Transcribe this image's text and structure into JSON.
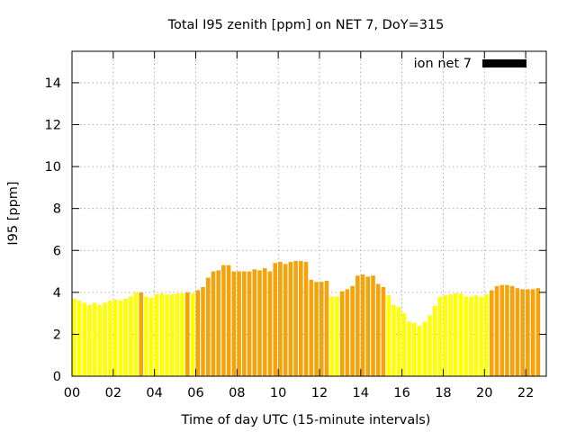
{
  "chart_data": {
    "type": "bar",
    "title": "Total I95 zenith [ppm] on NET 7, DoY=315",
    "xlabel": "Time of day UTC (15-minute intervals)",
    "ylabel": "I95 [ppm]",
    "xlim": [
      0,
      23
    ],
    "ylim": [
      0,
      15.5
    ],
    "x_ticks": [
      0,
      2,
      4,
      6,
      8,
      10,
      12,
      14,
      16,
      18,
      20,
      22
    ],
    "x_tick_labels": [
      "00",
      "02",
      "04",
      "06",
      "08",
      "10",
      "12",
      "14",
      "16",
      "18",
      "20",
      "22"
    ],
    "y_ticks": [
      0,
      2,
      4,
      6,
      8,
      10,
      12,
      14
    ],
    "y_tick_labels": [
      "0",
      "2",
      "4",
      "6",
      "8",
      "10",
      "12",
      "14"
    ],
    "grid": true,
    "legend": {
      "label": "ion net 7",
      "color": "#000000",
      "position": "top-right"
    },
    "interval_hours": 0.25,
    "x": [
      0.0,
      0.25,
      0.5,
      0.75,
      1.0,
      1.25,
      1.5,
      1.75,
      2.0,
      2.25,
      2.5,
      2.75,
      3.0,
      3.25,
      3.5,
      3.75,
      4.0,
      4.25,
      4.5,
      4.75,
      5.0,
      5.25,
      5.5,
      5.75,
      6.0,
      6.25,
      6.5,
      6.75,
      7.0,
      7.25,
      7.5,
      7.75,
      8.0,
      8.25,
      8.5,
      8.75,
      9.0,
      9.25,
      9.5,
      9.75,
      10.0,
      10.25,
      10.5,
      10.75,
      11.0,
      11.25,
      11.5,
      11.75,
      12.0,
      12.25,
      12.5,
      12.75,
      13.0,
      13.25,
      13.5,
      13.75,
      14.0,
      14.25,
      14.5,
      14.75,
      15.0,
      15.25,
      15.5,
      15.75,
      16.0,
      16.25,
      16.5,
      16.75,
      17.0,
      17.25,
      17.5,
      17.75,
      18.0,
      18.25,
      18.5,
      18.75,
      19.0,
      19.25,
      19.5,
      19.75,
      20.0,
      20.25,
      20.5,
      20.75,
      21.0,
      21.25,
      21.5,
      21.75,
      22.0,
      22.25,
      22.5
    ],
    "values": [
      3.7,
      3.6,
      3.5,
      3.4,
      3.5,
      3.4,
      3.5,
      3.6,
      3.65,
      3.6,
      3.7,
      3.8,
      4.0,
      4.0,
      3.8,
      3.75,
      3.9,
      3.95,
      3.9,
      3.9,
      3.95,
      3.95,
      4.0,
      3.95,
      4.1,
      4.25,
      4.7,
      5.0,
      5.05,
      5.3,
      5.3,
      5.0,
      5.0,
      5.0,
      5.0,
      5.1,
      5.05,
      5.15,
      5.0,
      5.4,
      5.45,
      5.35,
      5.45,
      5.5,
      5.5,
      5.45,
      4.6,
      4.5,
      4.5,
      4.55,
      3.8,
      3.8,
      4.05,
      4.15,
      4.3,
      4.8,
      4.85,
      4.75,
      4.8,
      4.4,
      4.25,
      3.85,
      3.4,
      3.3,
      3.0,
      2.6,
      2.55,
      2.4,
      2.6,
      2.9,
      3.35,
      3.8,
      3.85,
      3.9,
      3.95,
      3.95,
      3.8,
      3.8,
      3.85,
      3.8,
      3.9,
      4.1,
      4.3,
      4.35,
      4.35,
      4.3,
      4.2,
      4.15,
      4.15,
      4.15,
      4.2
    ],
    "colors": [
      "#ffff00",
      "#ffff00",
      "#ffff00",
      "#ffff00",
      "#ffff00",
      "#ffff00",
      "#ffff00",
      "#ffff00",
      "#ffff00",
      "#ffff00",
      "#ffff00",
      "#ffff00",
      "#ffff00",
      "#f5a30b",
      "#ffff00",
      "#ffff00",
      "#ffff00",
      "#ffff00",
      "#ffff00",
      "#ffff00",
      "#ffff00",
      "#ffff00",
      "#f5a30b",
      "#ffff00",
      "#f5a30b",
      "#f5a30b",
      "#f5a30b",
      "#f5a30b",
      "#f5a30b",
      "#f5a30b",
      "#f5a30b",
      "#f5a30b",
      "#f5a30b",
      "#f5a30b",
      "#f5a30b",
      "#f5a30b",
      "#f5a30b",
      "#f5a30b",
      "#f5a30b",
      "#f5a30b",
      "#f5a30b",
      "#f5a30b",
      "#f5a30b",
      "#f5a30b",
      "#f5a30b",
      "#f5a30b",
      "#f5a30b",
      "#f5a30b",
      "#f5a30b",
      "#f5a30b",
      "#ffff00",
      "#ffff00",
      "#f5a30b",
      "#f5a30b",
      "#f5a30b",
      "#f5a30b",
      "#f5a30b",
      "#f5a30b",
      "#f5a30b",
      "#f5a30b",
      "#f5a30b",
      "#ffff00",
      "#ffff00",
      "#ffff00",
      "#ffff00",
      "#ffff00",
      "#ffff00",
      "#ffff00",
      "#ffff00",
      "#ffff00",
      "#ffff00",
      "#ffff00",
      "#ffff00",
      "#ffff00",
      "#ffff00",
      "#ffff00",
      "#ffff00",
      "#ffff00",
      "#ffff00",
      "#ffff00",
      "#ffff00",
      "#f5a30b",
      "#f5a30b",
      "#f5a30b",
      "#f5a30b",
      "#f5a30b",
      "#f5a30b",
      "#f5a30b",
      "#f5a30b",
      "#f5a30b",
      "#f5a30b"
    ]
  }
}
